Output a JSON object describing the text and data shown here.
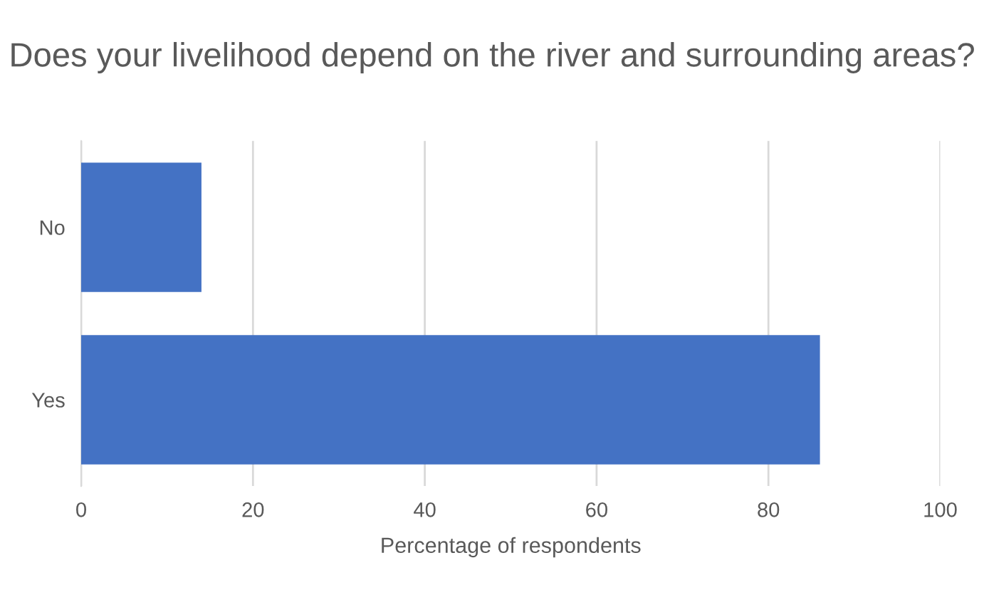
{
  "chart_data": {
    "type": "bar",
    "orientation": "horizontal",
    "title": "Does your livelihood depend on the river and surrounding areas?",
    "xlabel": "Percentage of respondents",
    "categories": [
      "No",
      "Yes"
    ],
    "values": [
      14,
      86
    ],
    "color": "#4472c4",
    "xlim": [
      0,
      100
    ],
    "xticks": [
      0,
      20,
      40,
      60,
      80,
      100
    ],
    "grid": "x",
    "legend": false
  }
}
